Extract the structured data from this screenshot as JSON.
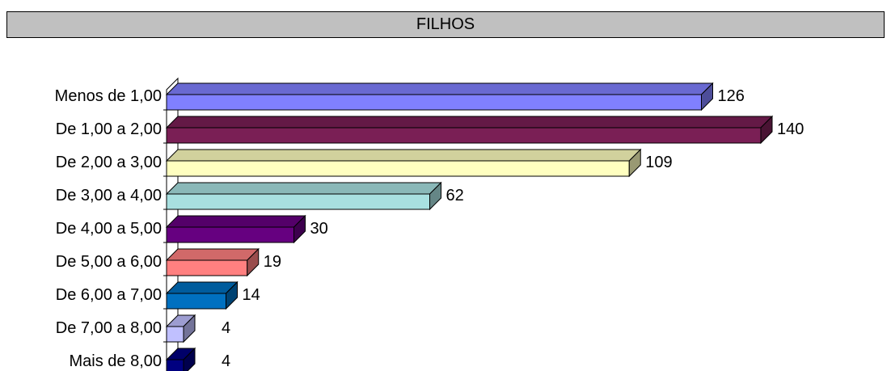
{
  "chart_data": {
    "type": "bar",
    "orientation": "horizontal",
    "style": "3d",
    "title": "FILHOS",
    "xlabel": "",
    "ylabel": "",
    "categories": [
      "Menos de 1,00",
      "De 1,00 a 2,00",
      "De 2,00 a 3,00",
      "De 3,00 a 4,00",
      "De 4,00 a 5,00",
      "De 5,00 a 6,00",
      "De 6,00 a 7,00",
      "De 7,00 a 8,00",
      "Mais de 8,00"
    ],
    "values": [
      126,
      140,
      109,
      62,
      30,
      19,
      14,
      4,
      4
    ],
    "colors": [
      "#8080ff",
      "#7a1f55",
      "#ffffc0",
      "#a8e0e0",
      "#660080",
      "#ff8080",
      "#0070c0",
      "#c0c0ff",
      "#000080"
    ],
    "grid": false,
    "legend": "none"
  }
}
